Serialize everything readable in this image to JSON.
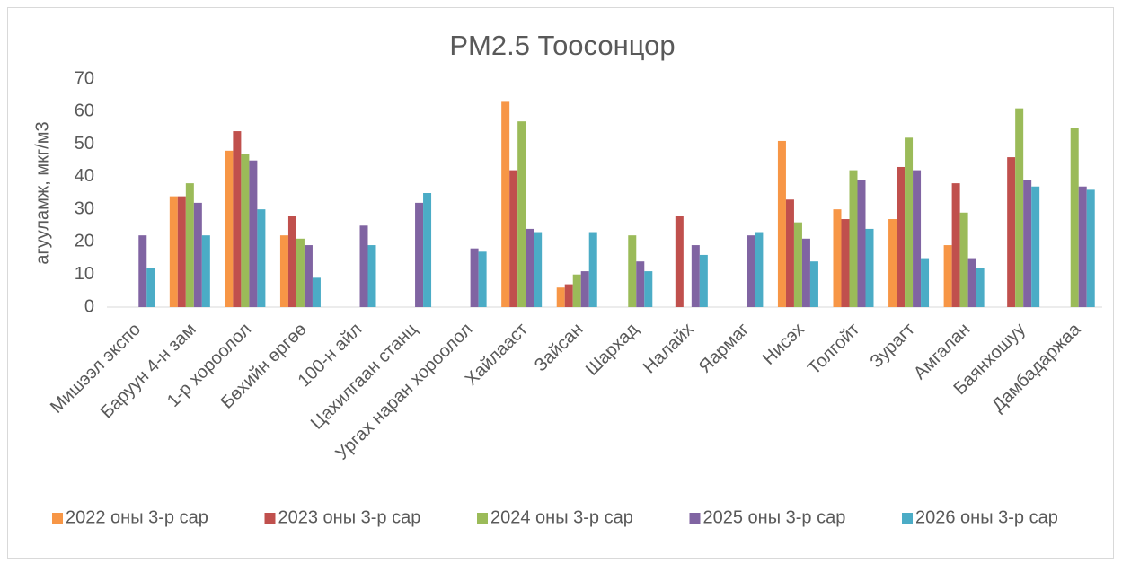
{
  "chart_data": {
    "type": "bar",
    "title": "PM2.5 Тоосонцор",
    "ylabel": "агууламж, мкг/м3",
    "categories": [
      "Мишээл экспо",
      "Баруун 4-н зам",
      "1-р хороолол",
      "Бөхийн өргөө",
      "100-н айл",
      "Цахилгаан станц",
      "Ургах наран хороолол",
      "Хайлааст",
      "Зайсан",
      "Шархад",
      "Налайх",
      "Яармаг",
      "Нисэх",
      "Толгойт",
      "Зурагт",
      "Амгалан",
      "Баянхошуу",
      "Дамбадаржаа"
    ],
    "series": [
      {
        "name": "2022 оны 3-р сар",
        "color": "#f79646",
        "values": [
          null,
          34,
          48,
          22,
          null,
          null,
          null,
          63,
          6,
          null,
          null,
          null,
          51,
          30,
          27,
          19,
          null,
          null
        ]
      },
      {
        "name": "2023 оны 3-р сар",
        "color": "#c0504d",
        "values": [
          null,
          34,
          54,
          28,
          null,
          null,
          null,
          42,
          7,
          null,
          28,
          null,
          33,
          27,
          43,
          38,
          46,
          null
        ]
      },
      {
        "name": "2024 оны 3-р сар",
        "color": "#9bbb59",
        "values": [
          null,
          38,
          47,
          21,
          null,
          null,
          null,
          57,
          10,
          22,
          null,
          null,
          26,
          42,
          52,
          29,
          61,
          55
        ]
      },
      {
        "name": "2025 оны 3-р сар",
        "color": "#8064a2",
        "values": [
          22,
          32,
          45,
          19,
          25,
          32,
          18,
          24,
          11,
          14,
          19,
          22,
          21,
          39,
          42,
          15,
          39,
          37
        ]
      },
      {
        "name": "2026 оны 3-р сар",
        "color": "#4bacc6",
        "values": [
          12,
          22,
          30,
          9,
          19,
          35,
          17,
          23,
          23,
          11,
          16,
          23,
          14,
          24,
          15,
          12,
          37,
          36
        ]
      }
    ],
    "ylim": [
      0,
      70
    ],
    "yticks": [
      0,
      10,
      20,
      30,
      40,
      50,
      60,
      70
    ],
    "legend": "bottom"
  }
}
